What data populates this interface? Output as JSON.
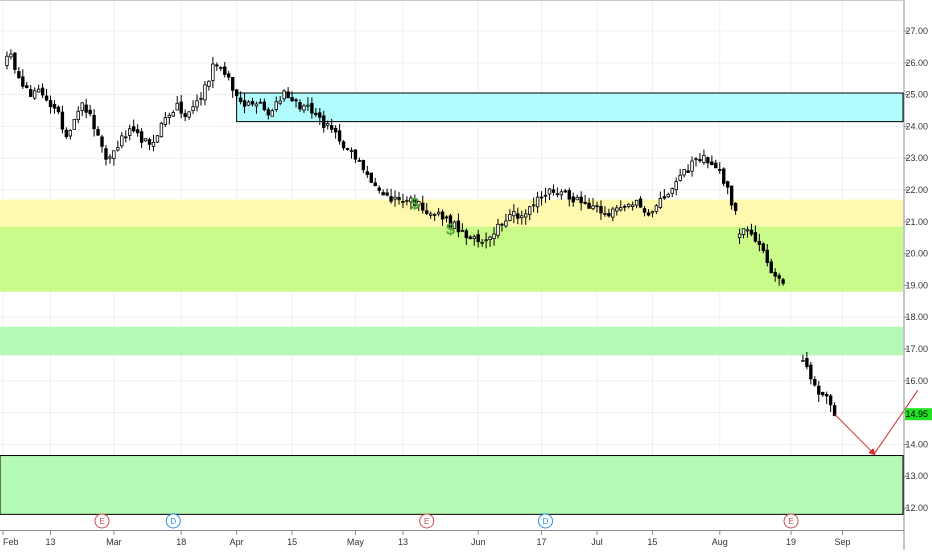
{
  "chart_data": {
    "type": "candlestick",
    "title": "",
    "xlabel": "",
    "ylabel": "",
    "ylim": [
      11.8,
      27.8
    ],
    "grid": true,
    "legend": "none",
    "y_ticks": [
      "27.00",
      "26.00",
      "25.00",
      "24.00",
      "23.00",
      "22.00",
      "21.00",
      "20.00",
      "19.00",
      "18.00",
      "17.00",
      "16.00",
      "15.00",
      "14.00",
      "13.00",
      "12.00"
    ],
    "x_ticks": [
      {
        "label": "Feb",
        "day": 0
      },
      {
        "label": "13",
        "day": 12
      },
      {
        "label": "Mar",
        "day": 28
      },
      {
        "label": "18",
        "day": 45
      },
      {
        "label": "Apr",
        "day": 59
      },
      {
        "label": "15",
        "day": 73
      },
      {
        "label": "May",
        "day": 89
      },
      {
        "label": "13",
        "day": 101
      },
      {
        "label": "Jun",
        "day": 120
      },
      {
        "label": "17",
        "day": 136
      },
      {
        "label": "Jul",
        "day": 150
      },
      {
        "label": "15",
        "day": 164
      },
      {
        "label": "Aug",
        "day": 181
      },
      {
        "label": "19",
        "day": 199
      },
      {
        "label": "Sep",
        "day": 212
      }
    ],
    "zones": [
      {
        "label": "zone-resistance",
        "y_low": 24.15,
        "y_high": 25.05,
        "fill": "#b0fcfc",
        "stroke": "#000000",
        "from_day": 59
      },
      {
        "label": "zone-yellow",
        "y_low": 20.85,
        "y_high": 21.7,
        "fill": "#fff9b0"
      },
      {
        "label": "zone-green-upper",
        "y_low": 18.8,
        "y_high": 20.85,
        "fill": "#c9fa8a"
      },
      {
        "label": "zone-green-middle",
        "y_low": 16.8,
        "y_high": 17.7,
        "fill": "#b4f9b4"
      },
      {
        "label": "zone-green-lower",
        "y_low": 11.8,
        "y_high": 13.65,
        "fill": "#b4f9b4",
        "stroke": "#000000"
      }
    ],
    "candles_segment_1": {
      "start_day": 0,
      "end_day": 46,
      "path": [
        26.0,
        26.2,
        25.8,
        25.3,
        24.9,
        25.1,
        25.0,
        24.6,
        24.3,
        23.7,
        24.2,
        24.7,
        24.5,
        24.0,
        23.3,
        22.9,
        23.3,
        23.6,
        23.8,
        23.7,
        23.6,
        23.3,
        23.8,
        24.2,
        24.5,
        24.6,
        24.3
      ]
    },
    "candles_segment_2": {
      "start_day": 46,
      "end_day": 185,
      "path": [
        24.3,
        24.8,
        25.9,
        25.6,
        24.6,
        24.8,
        24.3,
        25.1,
        24.7,
        24.5,
        24.0,
        23.6,
        23.0,
        22.5,
        21.8,
        21.7,
        21.7,
        21.4,
        21.2,
        20.9,
        20.5,
        20.3,
        20.8,
        21.3,
        21.2,
        21.7,
        22.0,
        21.9,
        21.6,
        21.5,
        21.3,
        21.4,
        21.7,
        21.2,
        21.8,
        22.3,
        22.9,
        23.0,
        22.5,
        21.3
      ]
    },
    "candles_segment_3": {
      "start_day": 185,
      "end_day": 197,
      "path": [
        20.6,
        20.7,
        20.2,
        19.5,
        19.1
      ]
    },
    "candles_segment_4": {
      "start_day": 201,
      "end_day": 210,
      "path": [
        16.6,
        16.4,
        15.7,
        15.5,
        14.95
      ]
    },
    "last_price": "14.95",
    "projection": {
      "color": "#d12b2b",
      "points": [
        [
          210,
          14.95
        ],
        [
          220,
          13.7
        ],
        [
          231,
          15.7
        ]
      ]
    },
    "markers": [
      {
        "symbol": "$",
        "day": 104,
        "y": 21.4
      },
      {
        "symbol": "$",
        "day": 113,
        "y": 20.6
      }
    ],
    "events": [
      {
        "label": "E",
        "day": 25,
        "color": "#d04a4a"
      },
      {
        "label": "D",
        "day": 43,
        "color": "#2b8de0"
      },
      {
        "label": "E",
        "day": 107,
        "color": "#d04a4a"
      },
      {
        "label": "D",
        "day": 137,
        "color": "#2b8de0"
      },
      {
        "label": "E",
        "day": 199,
        "color": "#d04a4a"
      }
    ],
    "colors": {
      "candle": "#000000",
      "marker": "#4caa3a",
      "price_tag": "#22e122",
      "grid": "#f0f0f0",
      "axis": "#8a8f96"
    }
  }
}
